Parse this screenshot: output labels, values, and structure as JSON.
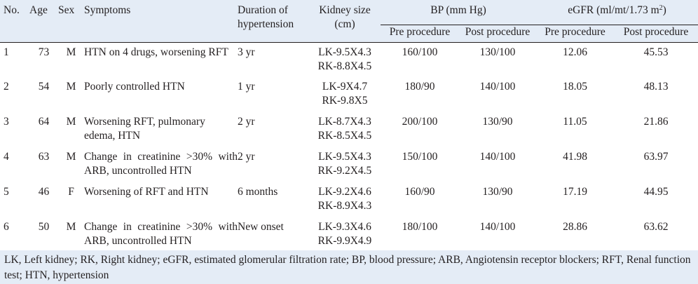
{
  "headers": {
    "no": "No.",
    "age": "Age",
    "sex": "Sex",
    "symptoms": "Symptoms",
    "duration": "Duration of hypertension",
    "kidney": "Kidney size (cm)",
    "bp": "BP (mm Hg)",
    "egfr": "eGFR (ml/mt/1.73 m",
    "egfr_sup": "2",
    "egfr_close": ")",
    "pre": "Pre procedure",
    "post": "Post procedure"
  },
  "rows": [
    {
      "no": "1",
      "age": "73",
      "sex": "M",
      "symptoms": "HTN on 4 drugs, worsening RFT",
      "duration": "3 yr",
      "lk": "LK-9.5X4.3",
      "rk": "RK-8.8X4.5",
      "bp_pre": "160/100",
      "bp_post": "130/100",
      "egfr_pre": "12.06",
      "egfr_post": "45.53"
    },
    {
      "no": "2",
      "age": "54",
      "sex": "M",
      "symptoms": "Poorly controlled HTN",
      "duration": "1 yr",
      "lk": "LK-9X4.7",
      "rk": "RK-9.8X5",
      "bp_pre": "180/90",
      "bp_post": "140/100",
      "egfr_pre": "18.05",
      "egfr_post": "48.13"
    },
    {
      "no": "3",
      "age": "64",
      "sex": "M",
      "symptoms": "Worsening RFT, pulmonary edema, HTN",
      "duration": "2 yr",
      "lk": "LK-8.7X4.3",
      "rk": "RK-8.5X4.5",
      "bp_pre": "200/100",
      "bp_post": "130/90",
      "egfr_pre": "11.05",
      "egfr_post": "21.86"
    },
    {
      "no": "4",
      "age": "63",
      "sex": "M",
      "symptoms": "Change in creatinine >30% with ARB, uncontrolled HTN",
      "duration": "2 yr",
      "lk": "LK-9.5X4.3",
      "rk": "RK-9.2X4.5",
      "bp_pre": "150/100",
      "bp_post": "140/100",
      "egfr_pre": "41.98",
      "egfr_post": "63.97"
    },
    {
      "no": "5",
      "age": "46",
      "sex": "F",
      "symptoms": "Worsening of RFT and HTN",
      "duration": "6 months",
      "lk": "LK-9.2X4.6",
      "rk": "RK-8.9X4.3",
      "bp_pre": "160/90",
      "bp_post": "130/90",
      "egfr_pre": "17.19",
      "egfr_post": "44.95"
    },
    {
      "no": "6",
      "age": "50",
      "sex": "M",
      "symptoms": "Change in creatinine >30% with ARB, uncontrolled HTN",
      "duration": "New onset",
      "lk": "LK-9.3X4.6",
      "rk": "RK-9.9X4.9",
      "bp_pre": "180/100",
      "bp_post": "140/100",
      "egfr_pre": "28.86",
      "egfr_post": "63.62"
    }
  ],
  "footnote": "LK, Left kidney; RK, Right kidney; eGFR, estimated glomerular filtration rate; BP, blood pressure; ARB, Angiotensin receptor blockers; RFT, Renal function test; HTN, hypertension",
  "colors": {
    "header_bg": "#e4ecf6",
    "text": "#231f20",
    "rule": "#231f20"
  }
}
